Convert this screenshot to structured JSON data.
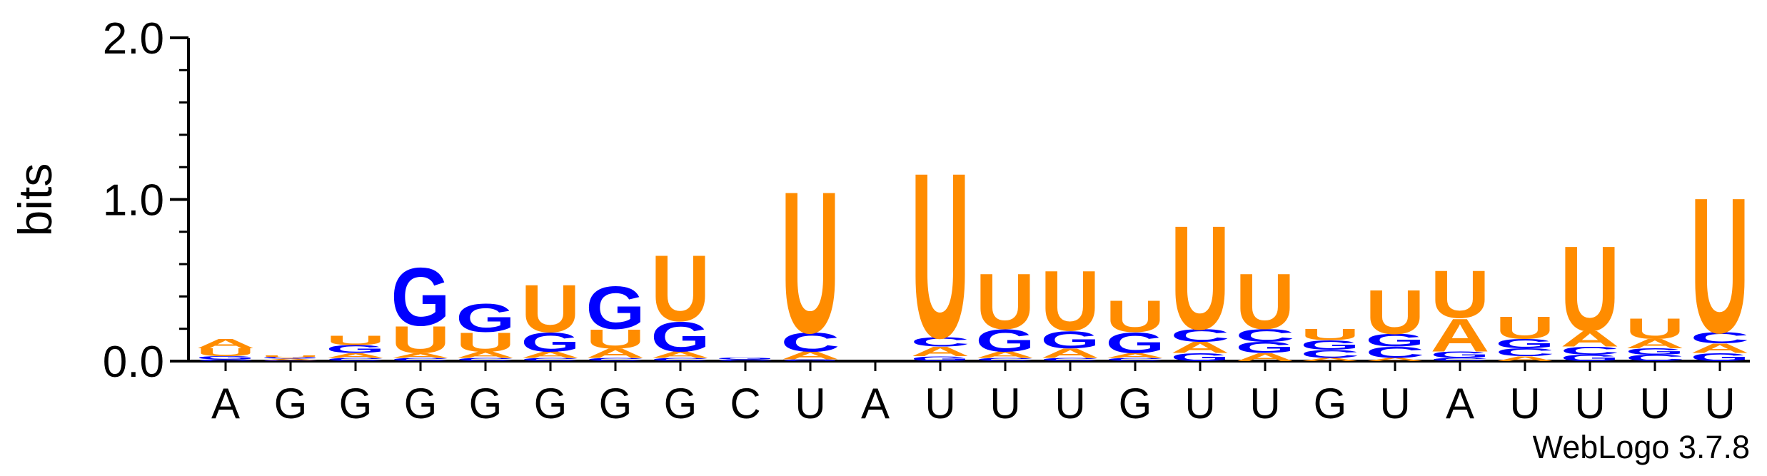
{
  "chart_data": {
    "type": "logo",
    "ylabel": "bits",
    "annotation": "WebLogo 3.7.8",
    "ylim": [
      0,
      2
    ],
    "yticks": [
      {
        "value": 0,
        "label": "0.0"
      },
      {
        "value": 1,
        "label": "1.0"
      },
      {
        "value": 2,
        "label": "2.0"
      }
    ],
    "minor_yticks": [
      0.2,
      0.4,
      0.6,
      0.8,
      1.2,
      1.4,
      1.6,
      1.8
    ],
    "categories": [
      "A",
      "G",
      "G",
      "G",
      "G",
      "G",
      "G",
      "G",
      "C",
      "U",
      "A",
      "U",
      "U",
      "U",
      "G",
      "U",
      "U",
      "G",
      "U",
      "A",
      "U",
      "U",
      "U",
      "U"
    ],
    "series": [
      {
        "name": "A",
        "color": "#ff8c00",
        "values": [
          0.06,
          0.01,
          0.03,
          0.03,
          0.04,
          0.04,
          0.06,
          0.04,
          0,
          0.05,
          0,
          0.06,
          0.04,
          0.06,
          0.03,
          0.07,
          0.05,
          0.02,
          0.02,
          0.21,
          0.03,
          0.1,
          0.06,
          0.06
        ]
      },
      {
        "name": "C",
        "color": "#0000ff",
        "values": [
          0.01,
          0.005,
          0.02,
          0.02,
          0.02,
          0.02,
          0.02,
          0.02,
          0.01,
          0.12,
          0,
          0.06,
          0.02,
          0.02,
          0.02,
          0.08,
          0.08,
          0.05,
          0.07,
          0.02,
          0.05,
          0.05,
          0.04,
          0.07
        ]
      },
      {
        "name": "G",
        "color": "#0000ff",
        "values": [
          0.02,
          0.01,
          0.05,
          0.37,
          0.18,
          0.12,
          0.27,
          0.19,
          0.01,
          0.01,
          0,
          0.03,
          0.14,
          0.11,
          0.13,
          0.05,
          0.07,
          0.06,
          0.08,
          0.04,
          0.06,
          0.04,
          0.04,
          0.05
        ]
      },
      {
        "name": "U",
        "color": "#ff8c00",
        "values": [
          0.05,
          0.01,
          0.06,
          0.17,
          0.12,
          0.3,
          0.12,
          0.42,
          0,
          0.9,
          0,
          1.05,
          0.35,
          0.38,
          0.2,
          0.66,
          0.35,
          0.07,
          0.28,
          0.3,
          0.14,
          0.54,
          0.13,
          0.86
        ]
      }
    ]
  }
}
